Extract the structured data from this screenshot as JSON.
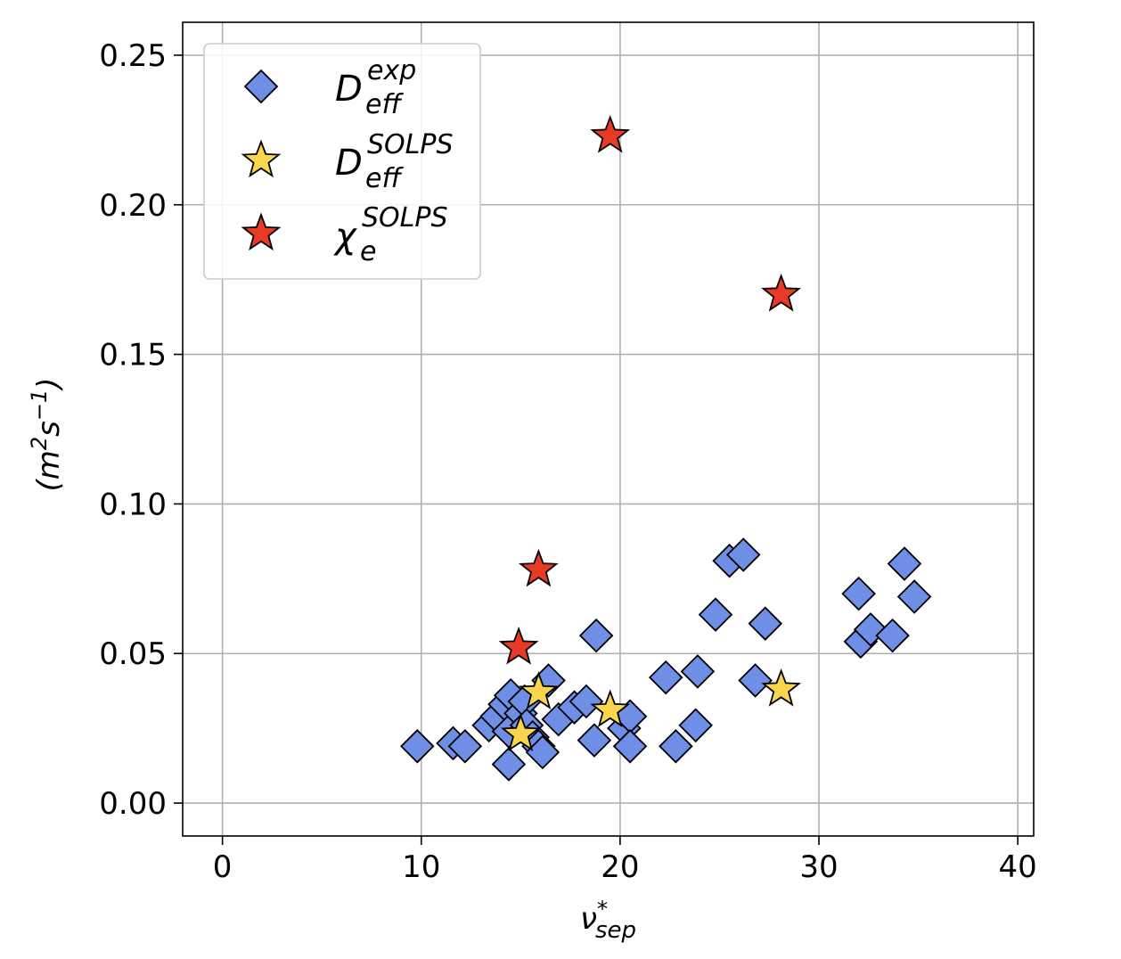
{
  "chart_data": {
    "type": "scatter",
    "title": "",
    "xlabel": {
      "base": "ν",
      "sup": "*",
      "sub": "sep"
    },
    "ylabel": {
      "text": "(m²s⁻¹)",
      "parts": [
        {
          "t": "(m",
          "k": "n"
        },
        {
          "t": "2",
          "k": "sup"
        },
        {
          "t": "s",
          "k": "n"
        },
        {
          "t": "−1",
          "k": "sup"
        },
        {
          "t": ")",
          "k": "n"
        }
      ]
    },
    "xlim": [
      -2,
      40.8
    ],
    "ylim": [
      -0.011,
      0.261
    ],
    "xticks": [
      0,
      10,
      20,
      30,
      40
    ],
    "yticks": [
      0.0,
      0.05,
      0.1,
      0.15,
      0.2,
      0.25
    ],
    "xtick_labels": [
      "0",
      "10",
      "20",
      "30",
      "40"
    ],
    "ytick_labels": [
      "0.00",
      "0.05",
      "0.10",
      "0.15",
      "0.20",
      "0.25"
    ],
    "grid": true,
    "legend_position": "upper-left",
    "series": [
      {
        "name": "D_eff^exp",
        "label": {
          "base": "D",
          "sup": "exp",
          "sub": "eff"
        },
        "marker": "diamond",
        "color": "#6f8fe6",
        "points": [
          [
            9.8,
            0.019
          ],
          [
            11.6,
            0.02
          ],
          [
            12.2,
            0.019
          ],
          [
            13.4,
            0.026
          ],
          [
            13.8,
            0.029
          ],
          [
            14.2,
            0.033
          ],
          [
            14.4,
            0.024
          ],
          [
            14.5,
            0.036
          ],
          [
            14.4,
            0.013
          ],
          [
            15.0,
            0.03
          ],
          [
            15.2,
            0.034
          ],
          [
            15.3,
            0.026
          ],
          [
            15.6,
            0.022
          ],
          [
            15.9,
            0.019
          ],
          [
            16.1,
            0.017
          ],
          [
            16.4,
            0.041
          ],
          [
            16.9,
            0.028
          ],
          [
            17.7,
            0.032
          ],
          [
            18.3,
            0.034
          ],
          [
            18.7,
            0.021
          ],
          [
            18.8,
            0.056
          ],
          [
            20.2,
            0.025
          ],
          [
            20.5,
            0.029
          ],
          [
            20.5,
            0.019
          ],
          [
            22.3,
            0.042
          ],
          [
            22.8,
            0.019
          ],
          [
            23.8,
            0.026
          ],
          [
            23.9,
            0.044
          ],
          [
            24.8,
            0.063
          ],
          [
            25.5,
            0.081
          ],
          [
            26.2,
            0.083
          ],
          [
            26.8,
            0.041
          ],
          [
            27.3,
            0.06
          ],
          [
            32.0,
            0.07
          ],
          [
            32.1,
            0.054
          ],
          [
            32.6,
            0.058
          ],
          [
            33.7,
            0.056
          ],
          [
            34.3,
            0.08
          ],
          [
            34.8,
            0.069
          ]
        ]
      },
      {
        "name": "D_eff^SOLPS",
        "label": {
          "base": "D",
          "sup": "SOLPS",
          "sub": "eff"
        },
        "marker": "star",
        "color": "#f9d54e",
        "points": [
          [
            15.0,
            0.023
          ],
          [
            15.9,
            0.037
          ],
          [
            19.5,
            0.031
          ],
          [
            28.1,
            0.038
          ]
        ]
      },
      {
        "name": "χ_e^SOLPS",
        "label": {
          "base": "χ",
          "sup": "SOLPS",
          "sub": "e"
        },
        "marker": "star",
        "color": "#e83a25",
        "points": [
          [
            19.5,
            0.223
          ],
          [
            28.1,
            0.17
          ],
          [
            15.9,
            0.078
          ],
          [
            14.9,
            0.052
          ]
        ]
      }
    ]
  }
}
